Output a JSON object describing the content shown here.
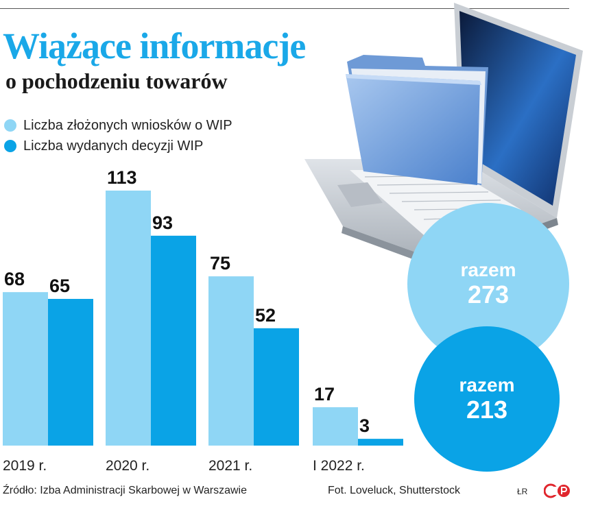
{
  "header": {
    "title": "Wiążące informacje",
    "subtitle": "o pochodzeniu towarów"
  },
  "colors": {
    "light_blue": "#8fd6f5",
    "dark_blue": "#0aa3e6",
    "title_blue": "#1aa8e8"
  },
  "chart_data": {
    "type": "bar",
    "categories": [
      "2019 r.",
      "2020 r.",
      "2021 r.",
      "I 2022 r."
    ],
    "series": [
      {
        "name": "Liczba złożonych wniosków o WIP",
        "values": [
          68,
          113,
          75,
          17
        ],
        "color": "#8fd6f5"
      },
      {
        "name": "Liczba wydanych decyzji WIP",
        "values": [
          65,
          93,
          52,
          3
        ],
        "color": "#0aa3e6"
      }
    ],
    "ylim": [
      0,
      113
    ],
    "grid": false,
    "legend_position": "top-left",
    "totals": [
      {
        "label": "razem",
        "value": "273"
      },
      {
        "label": "razem",
        "value": "213"
      }
    ]
  },
  "footer": {
    "source": "Źródło: Izba Administracji Skarbowej w Warszawie",
    "photo": "Fot. Loveluck, Shutterstock",
    "initials": "ŁR"
  },
  "icons": {
    "laptop": "laptop-folder-illustration",
    "logo": "cp-logo"
  }
}
